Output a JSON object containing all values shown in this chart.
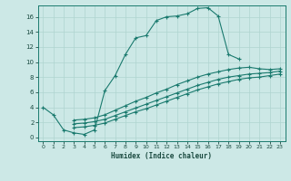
{
  "xlabel": "Humidex (Indice chaleur)",
  "bg_color": "#cce8e6",
  "line_color": "#1a7a6e",
  "grid_color": "#afd4d0",
  "xlim": [
    -0.5,
    23.5
  ],
  "ylim": [
    -0.5,
    17.5
  ],
  "xticks": [
    0,
    1,
    2,
    3,
    4,
    5,
    6,
    7,
    8,
    9,
    10,
    11,
    12,
    13,
    14,
    15,
    16,
    17,
    18,
    19,
    20,
    21,
    22,
    23
  ],
  "yticks": [
    0,
    2,
    4,
    6,
    8,
    10,
    12,
    14,
    16
  ],
  "curve1_x": [
    0,
    1,
    2,
    3,
    4,
    5,
    6,
    7,
    8,
    9,
    10,
    11,
    12,
    13,
    14,
    15,
    16,
    17,
    18,
    19
  ],
  "curve1_y": [
    4.0,
    3.0,
    1.0,
    0.6,
    0.4,
    1.0,
    6.2,
    8.2,
    11.0,
    13.2,
    13.5,
    15.5,
    16.0,
    16.1,
    16.4,
    17.1,
    17.2,
    16.1,
    11.0,
    10.4
  ],
  "curve2_x": [
    3,
    4,
    5,
    6,
    7,
    8,
    9,
    10,
    11,
    12,
    13,
    14,
    15,
    16,
    17,
    18,
    19,
    20,
    21,
    22,
    23
  ],
  "curve2_y": [
    2.3,
    2.4,
    2.6,
    3.0,
    3.6,
    4.2,
    4.8,
    5.3,
    5.9,
    6.4,
    7.0,
    7.5,
    8.0,
    8.4,
    8.7,
    9.0,
    9.2,
    9.3,
    9.1,
    9.0,
    9.1
  ],
  "curve3_x": [
    3,
    4,
    5,
    6,
    7,
    8,
    9,
    10,
    11,
    12,
    13,
    14,
    15,
    16,
    17,
    18,
    19,
    20,
    21,
    22,
    23
  ],
  "curve3_y": [
    1.8,
    1.9,
    2.1,
    2.4,
    2.9,
    3.4,
    3.9,
    4.4,
    4.9,
    5.4,
    5.9,
    6.4,
    6.9,
    7.3,
    7.7,
    8.0,
    8.2,
    8.4,
    8.5,
    8.6,
    8.8
  ],
  "curve4_x": [
    3,
    4,
    5,
    6,
    7,
    8,
    9,
    10,
    11,
    12,
    13,
    14,
    15,
    16,
    17,
    18,
    19,
    20,
    21,
    22,
    23
  ],
  "curve4_y": [
    1.3,
    1.4,
    1.6,
    1.9,
    2.4,
    2.9,
    3.4,
    3.8,
    4.3,
    4.8,
    5.3,
    5.8,
    6.3,
    6.7,
    7.1,
    7.4,
    7.7,
    7.9,
    8.0,
    8.2,
    8.4
  ]
}
